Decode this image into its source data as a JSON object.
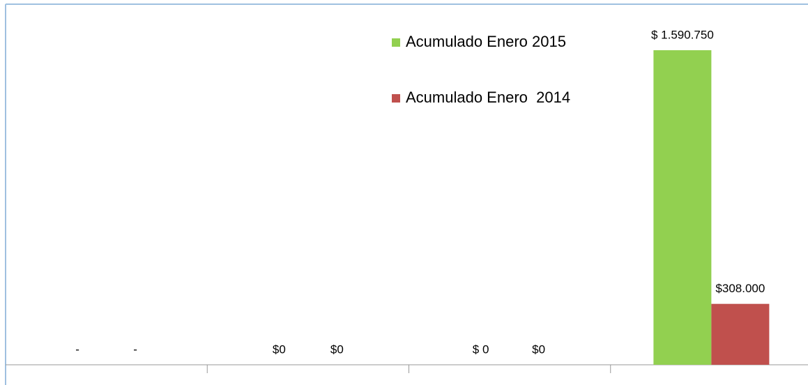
{
  "chart_data": {
    "type": "bar",
    "categories": [
      null,
      null,
      null,
      null
    ],
    "series": [
      {
        "name": "Acumulado Enero 2015",
        "color": "#92d050",
        "values": [
          0,
          0,
          0,
          1590750
        ],
        "value_labels": [
          "-",
          "$0",
          "$ 0",
          "$ 1.590.750"
        ]
      },
      {
        "name": "Acumulado Enero  2014",
        "color": "#c0504d",
        "values": [
          0,
          0,
          0,
          308000
        ],
        "value_labels": [
          "-",
          "$0",
          "$0",
          "$308.000"
        ]
      }
    ],
    "legend": "top-right"
  }
}
